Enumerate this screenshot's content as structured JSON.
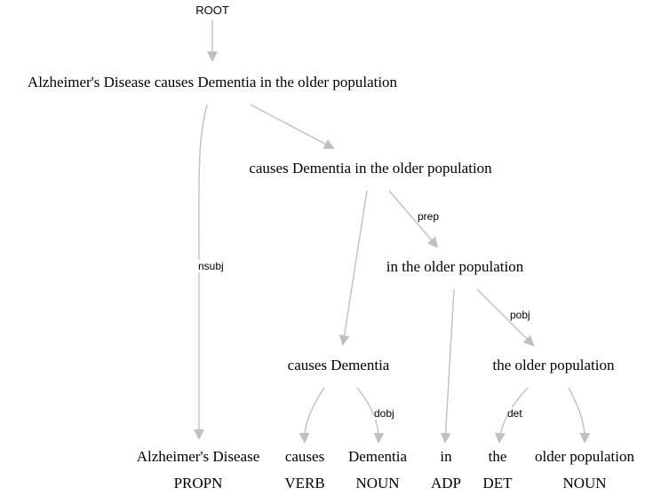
{
  "root_label": "ROOT",
  "colors": {
    "edge": "#c0c0c0",
    "text": "#000000",
    "background": "#ffffff"
  },
  "phrases": {
    "sentence": "Alzheimer's Disease causes Dementia in the older population",
    "vp": "causes Dementia in the older population",
    "pp": "in the older population",
    "vp_inner": "causes Dementia",
    "np": "the older population"
  },
  "tokens": [
    {
      "text": "Alzheimer's Disease",
      "pos": "PROPN"
    },
    {
      "text": "causes",
      "pos": "VERB"
    },
    {
      "text": "Dementia",
      "pos": "NOUN"
    },
    {
      "text": "in",
      "pos": "ADP"
    },
    {
      "text": "the",
      "pos": "DET"
    },
    {
      "text": "older population",
      "pos": "NOUN"
    }
  ],
  "edge_labels": {
    "nsubj": "nsubj",
    "prep": "prep",
    "pobj": "pobj",
    "dobj": "dobj",
    "det": "det"
  }
}
